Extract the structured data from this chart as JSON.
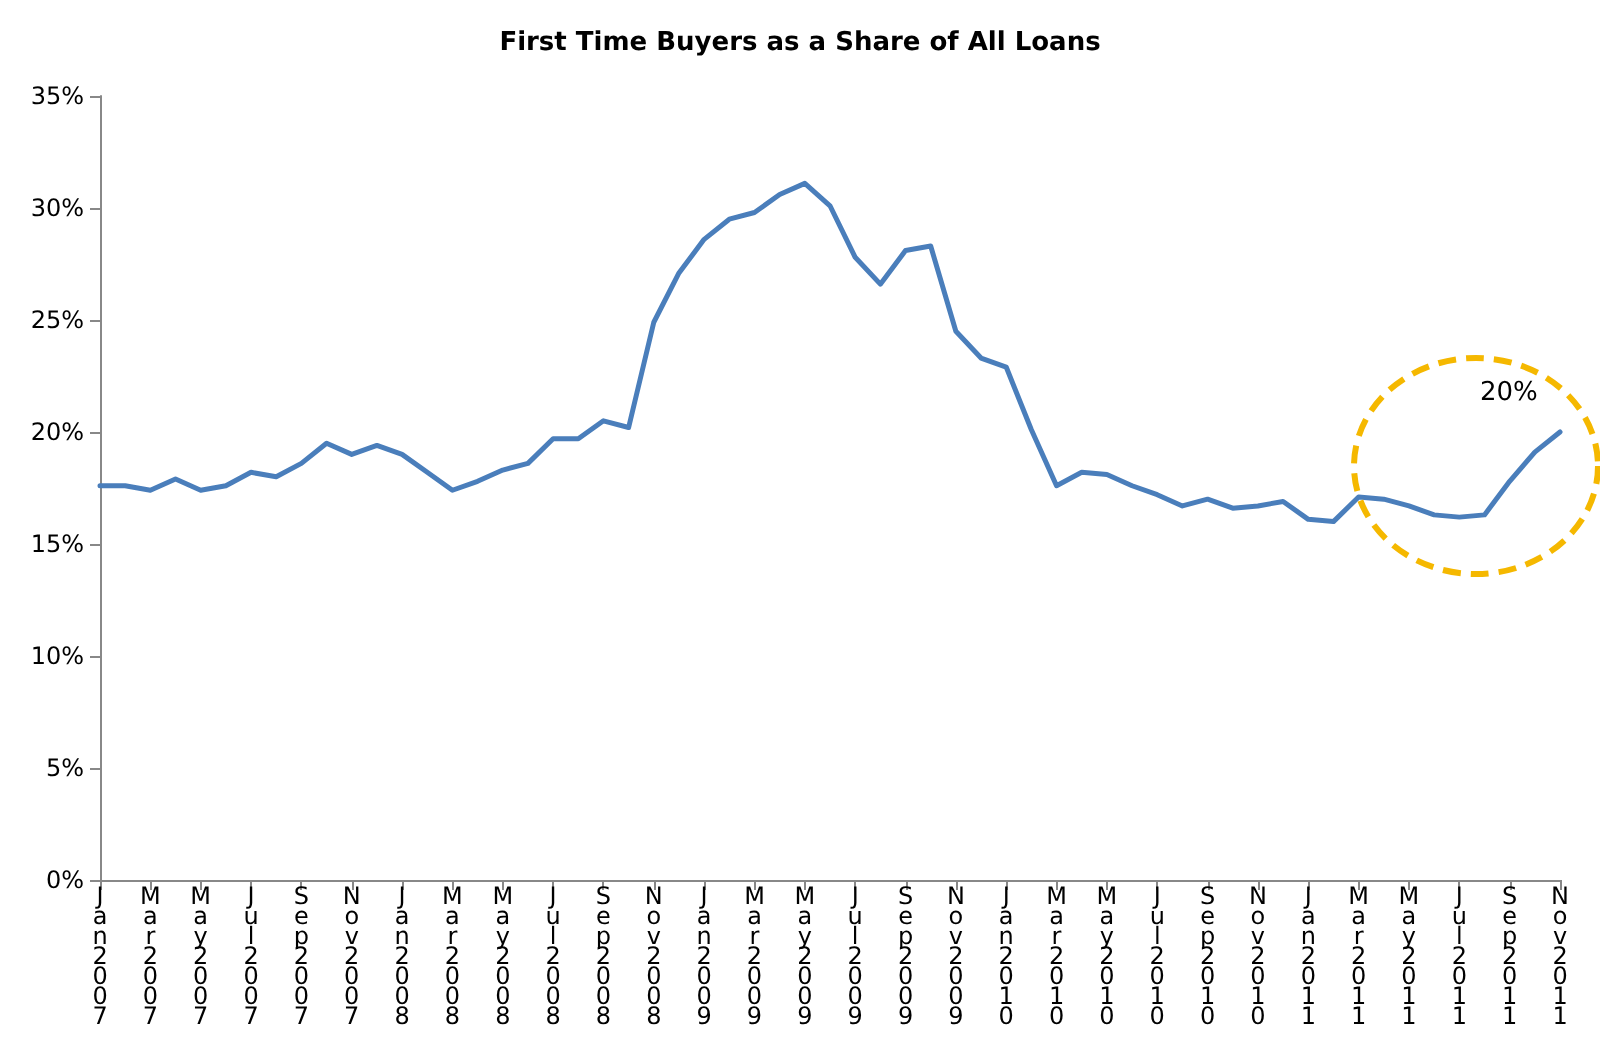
{
  "chart_data": {
    "type": "line",
    "title": "First Time Buyers as a Share of All Loans",
    "categories": [
      "Jan2007",
      null,
      "Mar2007",
      null,
      "May2007",
      null,
      "Jul2007",
      null,
      "Sep2007",
      null,
      "Nov2007",
      null,
      "Jan2008",
      null,
      "Mar2008",
      null,
      "May2008",
      null,
      "Jul2008",
      null,
      "Sep2008",
      null,
      "Nov2008",
      null,
      "Jan2009",
      null,
      "Mar2009",
      null,
      "May2009",
      null,
      "Jul2009",
      null,
      "Sep2009",
      null,
      "Nov2009",
      null,
      "Jan2010",
      null,
      "Mar2010",
      null,
      "May2010",
      null,
      "Jul2010",
      null,
      "Sep2010",
      null,
      "Nov2010",
      null,
      "Jan2011",
      null,
      "Mar2011",
      null,
      "May2011",
      null,
      "Jul2011",
      null,
      "Sep2011",
      null,
      "Nov2011"
    ],
    "series": [
      {
        "color": "#4a7ebb",
        "values": [
          17.6,
          17.6,
          17.4,
          17.9,
          17.4,
          17.6,
          18.2,
          18.0,
          18.6,
          19.5,
          19.0,
          19.4,
          19.0,
          18.2,
          17.4,
          17.8,
          18.3,
          18.6,
          19.7,
          19.7,
          20.5,
          20.2,
          24.9,
          27.1,
          28.6,
          29.5,
          29.8,
          30.6,
          31.1,
          30.1,
          27.8,
          26.6,
          28.1,
          28.3,
          24.5,
          23.3,
          22.9,
          20.1,
          17.6,
          18.2,
          18.1,
          17.6,
          17.2,
          16.7,
          17.0,
          16.6,
          16.7,
          16.9,
          16.1,
          16.0,
          17.1,
          17.0,
          16.7,
          16.3,
          16.2,
          16.3,
          17.8,
          19.1,
          20.0
        ]
      }
    ],
    "ylim": [
      0,
      35
    ],
    "yticks": [
      {
        "value": 0,
        "label": "0%"
      },
      {
        "value": 5,
        "label": "5%"
      },
      {
        "value": 10,
        "label": "10%"
      },
      {
        "value": 15,
        "label": "15%"
      },
      {
        "value": 20,
        "label": "20%"
      },
      {
        "value": 25,
        "label": "25%"
      },
      {
        "value": 30,
        "label": "30%"
      },
      {
        "value": 35,
        "label": "35%"
      }
    ],
    "annotations": [
      {
        "text": "20%",
        "x": "Nov2011",
        "y": 20
      }
    ],
    "grid": false,
    "marker": "none",
    "line_style": "solid"
  }
}
